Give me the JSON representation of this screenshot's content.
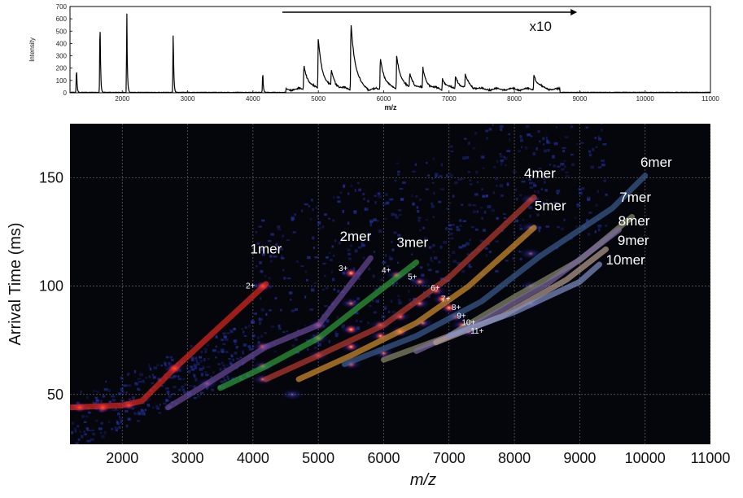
{
  "chart_data": [
    {
      "type": "line",
      "xlabel": "m/z",
      "ylabel": "Intensity",
      "xlim": [
        1200,
        11000
      ],
      "ylim": [
        0,
        700
      ],
      "x_ticks": [
        "2000",
        "3000",
        "4000",
        "5000",
        "6000",
        "7000",
        "8000",
        "9000",
        "10000",
        "11000"
      ],
      "y_ticks": [
        "0",
        "100",
        "200",
        "300",
        "400",
        "500",
        "600",
        "700"
      ],
      "annotation": "x10",
      "annotation_range": [
        4450,
        8960
      ],
      "peaks": [
        {
          "x": 1300,
          "y": 210
        },
        {
          "x": 1660,
          "y": 630
        },
        {
          "x": 2070,
          "y": 640
        },
        {
          "x": 2780,
          "y": 510
        },
        {
          "x": 4150,
          "y": 180
        },
        {
          "x": 4780,
          "y": 220
        },
        {
          "x": 5000,
          "y": 440
        },
        {
          "x": 5200,
          "y": 140
        },
        {
          "x": 5500,
          "y": 600
        },
        {
          "x": 5950,
          "y": 280
        },
        {
          "x": 6200,
          "y": 300
        },
        {
          "x": 6400,
          "y": 130
        },
        {
          "x": 6600,
          "y": 170
        },
        {
          "x": 6900,
          "y": 100
        },
        {
          "x": 7100,
          "y": 110
        },
        {
          "x": 7250,
          "y": 110
        },
        {
          "x": 8300,
          "y": 130
        }
      ]
    },
    {
      "type": "heatmap",
      "xlabel": "m/z",
      "ylabel": "Arrival Time (ms)",
      "xlim": [
        1200,
        11000
      ],
      "ylim": [
        27,
        175
      ],
      "x_ticks": [
        "2000",
        "3000",
        "4000",
        "5000",
        "6000",
        "7000",
        "8000",
        "9000",
        "10000",
        "11000"
      ],
      "y_ticks": [
        "50",
        "100",
        "150"
      ],
      "grid": true,
      "series": [
        {
          "name": "1mer",
          "color": "#e0281e",
          "points": [
            [
              1200,
              44
            ],
            [
              2000,
              45
            ],
            [
              2300,
              47
            ],
            [
              2800,
              62
            ],
            [
              4200,
              101
            ]
          ]
        },
        {
          "name": "2mer",
          "color": "#6a4a9a",
          "points": [
            [
              2700,
              44
            ],
            [
              3300,
              55
            ],
            [
              4200,
              72
            ],
            [
              5000,
              82
            ],
            [
              5800,
              113
            ]
          ]
        },
        {
          "name": "3mer",
          "color": "#2ea03c",
          "points": [
            [
              3500,
              53
            ],
            [
              4200,
              63
            ],
            [
              5000,
              76
            ],
            [
              6500,
              111
            ]
          ]
        },
        {
          "name": "4mer",
          "color": "#b83a2e",
          "points": [
            [
              4200,
              57
            ],
            [
              5000,
              68
            ],
            [
              6000,
              82
            ],
            [
              7000,
              104
            ],
            [
              8300,
              141
            ]
          ]
        },
        {
          "name": "5mer",
          "color": "#d4902c",
          "points": [
            [
              4700,
              57
            ],
            [
              5500,
              68
            ],
            [
              6500,
              83
            ],
            [
              7300,
              100
            ],
            [
              8300,
              127
            ]
          ]
        },
        {
          "name": "6mer",
          "color": "#3a5c8e",
          "points": [
            [
              5400,
              64
            ],
            [
              6500,
              77
            ],
            [
              7500,
              93
            ],
            [
              8400,
              114
            ],
            [
              9500,
              136
            ],
            [
              10000,
              151
            ]
          ]
        },
        {
          "name": "7mer",
          "color": "#8a8c6a",
          "points": [
            [
              6000,
              66
            ],
            [
              7000,
              77
            ],
            [
              8000,
              95
            ],
            [
              9000,
              112
            ],
            [
              9800,
              132
            ]
          ]
        },
        {
          "name": "8mer",
          "color": "#7a6aa0",
          "points": [
            [
              6500,
              70
            ],
            [
              7500,
              84
            ],
            [
              8500,
              101
            ],
            [
              9600,
              126
            ]
          ]
        },
        {
          "name": "9mer",
          "color": "#b8a090",
          "points": [
            [
              6800,
              74
            ],
            [
              7800,
              86
            ],
            [
              8800,
              103
            ],
            [
              9400,
              117
            ]
          ]
        },
        {
          "name": "10mer",
          "color": "#8090c8",
          "points": [
            [
              7000,
              77
            ],
            [
              8000,
              88
            ],
            [
              9000,
              102
            ],
            [
              9300,
              110
            ]
          ]
        }
      ],
      "series_labels": [
        {
          "text": "1mer",
          "x": 4200,
          "y": 115
        },
        {
          "text": "2mer",
          "x": 5570,
          "y": 121
        },
        {
          "text": "3mer",
          "x": 6440,
          "y": 118
        },
        {
          "text": "4mer",
          "x": 8390,
          "y": 150
        },
        {
          "text": "5mer",
          "x": 8550,
          "y": 135
        },
        {
          "text": "6mer",
          "x": 10170,
          "y": 155
        },
        {
          "text": "7mer",
          "x": 9850,
          "y": 139
        },
        {
          "text": "8mer",
          "x": 9830,
          "y": 128
        },
        {
          "text": "9mer",
          "x": 9820,
          "y": 119
        },
        {
          "text": "10mer",
          "x": 9700,
          "y": 110
        }
      ],
      "charge_labels": [
        {
          "text": "2+",
          "x": 3960,
          "y": 99
        },
        {
          "text": "3+",
          "x": 5380,
          "y": 107
        },
        {
          "text": "4+",
          "x": 6040,
          "y": 106
        },
        {
          "text": "5+",
          "x": 6440,
          "y": 103
        },
        {
          "text": "6+",
          "x": 6790,
          "y": 98
        },
        {
          "text": "7+",
          "x": 6950,
          "y": 93
        },
        {
          "text": "8+",
          "x": 7110,
          "y": 89
        },
        {
          "text": "9+",
          "x": 7190,
          "y": 85
        },
        {
          "text": "10+",
          "x": 7300,
          "y": 82
        },
        {
          "text": "11+",
          "x": 7430,
          "y": 78
        }
      ],
      "hotspots": [
        [
          1350,
          44,
          0.9
        ],
        [
          1700,
          44,
          1.0
        ],
        [
          2100,
          45,
          0.8
        ],
        [
          2800,
          62,
          1.0
        ],
        [
          3300,
          55,
          0.6
        ],
        [
          4150,
          100,
          0.9
        ],
        [
          4150,
          72,
          0.8
        ],
        [
          4150,
          63,
          0.7
        ],
        [
          4150,
          57,
          0.6
        ],
        [
          4600,
          50,
          0.3
        ],
        [
          5000,
          82,
          0.8
        ],
        [
          5000,
          76,
          0.8
        ],
        [
          5000,
          68,
          0.7
        ],
        [
          5500,
          106,
          0.9
        ],
        [
          5500,
          92,
          0.6
        ],
        [
          5500,
          80,
          0.9
        ],
        [
          5500,
          72,
          0.8
        ],
        [
          5500,
          64,
          0.7
        ],
        [
          5950,
          82,
          0.8
        ],
        [
          5950,
          77,
          0.8
        ],
        [
          6000,
          69,
          0.6
        ],
        [
          6200,
          105,
          0.8
        ],
        [
          6250,
          86,
          0.8
        ],
        [
          6250,
          79,
          0.9
        ],
        [
          6550,
          102,
          0.7
        ],
        [
          6550,
          92,
          0.7
        ],
        [
          6600,
          83,
          0.6
        ],
        [
          6800,
          98,
          0.8
        ],
        [
          6900,
          94,
          0.9
        ],
        [
          7000,
          90,
          0.9
        ],
        [
          7100,
          86,
          0.8
        ],
        [
          7200,
          82,
          0.7
        ],
        [
          7300,
          79,
          0.6
        ],
        [
          8250,
          140,
          0.5
        ],
        [
          8250,
          127,
          0.4
        ],
        [
          8250,
          115,
          0.4
        ],
        [
          8250,
          100,
          0.4
        ],
        [
          8250,
          92,
          0.4
        ]
      ]
    }
  ]
}
